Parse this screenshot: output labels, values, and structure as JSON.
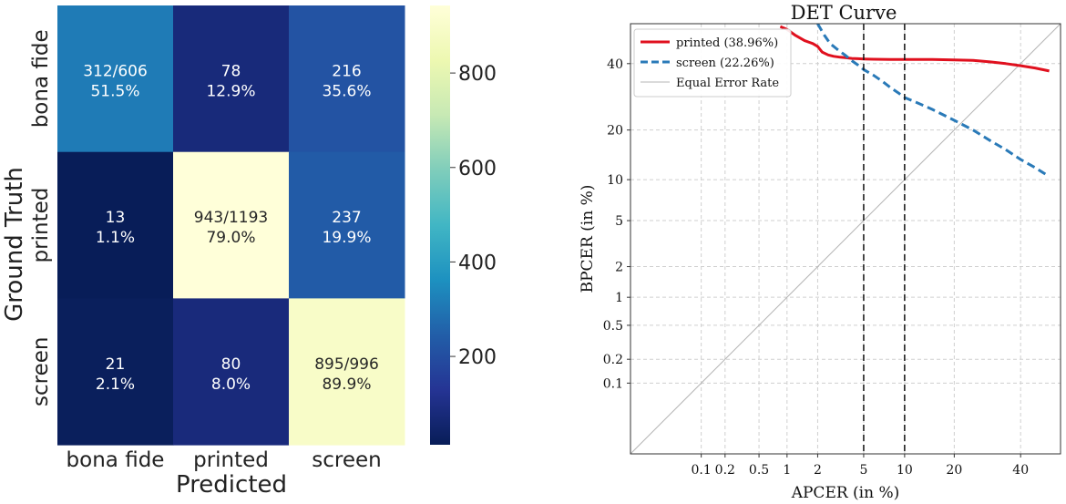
{
  "chart_data": [
    {
      "type": "heatmap",
      "ylabel": "Ground Truth",
      "xlabel": "Predicted",
      "row_labels": [
        "bona fide",
        "printed",
        "screen"
      ],
      "col_labels": [
        "bona fide",
        "printed",
        "screen"
      ],
      "values": [
        [
          312,
          78,
          216
        ],
        [
          13,
          943,
          237
        ],
        [
          21,
          80,
          895
        ]
      ],
      "cell_text": [
        [
          "312/606",
          "78",
          "216"
        ],
        [
          "13",
          "943/1193",
          "237"
        ],
        [
          "21",
          "80",
          "895/996"
        ]
      ],
      "cell_pct": [
        [
          "51.5%",
          "12.9%",
          "35.6%"
        ],
        [
          "1.1%",
          "79.0%",
          "19.9%"
        ],
        [
          "2.1%",
          "8.0%",
          "89.9%"
        ]
      ],
      "colorbar": {
        "ticks": [
          "200",
          "400",
          "600",
          "800"
        ],
        "tick_values": [
          200,
          400,
          600,
          800
        ],
        "range": [
          13,
          943
        ]
      },
      "colormap": [
        "#081d58",
        "#253494",
        "#225ea8",
        "#1d91c0",
        "#41b6c4",
        "#7fcdbb",
        "#c7e9b4",
        "#edf8b1",
        "#ffffd9"
      ]
    },
    {
      "type": "line",
      "title": "DET Curve",
      "xlabel": "APCER (in %)",
      "ylabel": "BPCER (in %)",
      "xscale": "probit",
      "yscale": "probit",
      "xlim": [
        0.01,
        54
      ],
      "ylim": [
        0.01,
        54
      ],
      "xticks": [
        0.1,
        0.2,
        0.5,
        1,
        2,
        5,
        10,
        20,
        40
      ],
      "xtick_labels": [
        "0.1",
        "0.2",
        "0.5",
        "1",
        "2",
        "5",
        "10",
        "20",
        "40"
      ],
      "yticks": [
        0.1,
        0.2,
        0.5,
        1,
        2,
        5,
        10,
        20,
        40
      ],
      "ytick_labels": [
        "0.1",
        "0.2",
        "0.5",
        "1",
        "2",
        "5",
        "10",
        "20",
        "40"
      ],
      "grid": true,
      "legend_position": "top-left",
      "vlines": [
        5,
        10
      ],
      "series": [
        {
          "name": "printed (38.96%)",
          "color": "#e0101e",
          "style": "solid",
          "x": [
            0.85,
            1.0,
            1.2,
            1.5,
            1.8,
            2.0,
            2.2,
            2.5,
            2.8,
            3.2,
            3.6,
            4.0,
            4.5,
            5.0,
            6,
            8,
            10,
            15,
            20,
            25,
            30,
            35,
            40,
            45,
            50
          ],
          "y": [
            53,
            52,
            50,
            48,
            47,
            46,
            44,
            43,
            42.5,
            42.2,
            42.0,
            41.8,
            41.7,
            41.6,
            41.5,
            41.4,
            41.4,
            41.4,
            41.3,
            41.1,
            40.6,
            40.0,
            39.3,
            38.5,
            37.5
          ]
        },
        {
          "name": "screen (22.26%)",
          "color": "#2a7ab8",
          "style": "dashed",
          "x": [
            2.0,
            2.3,
            2.6,
            3.0,
            3.5,
            4.0,
            4.5,
            5.0,
            6.0,
            7.0,
            8.0,
            9.0,
            10.0,
            12.0,
            15.0,
            20.0,
            25.0,
            30.0,
            35.0,
            40.0,
            45.0,
            50.0
          ],
          "y": [
            54,
            50,
            47,
            45,
            43,
            41,
            39.5,
            38,
            36,
            34,
            32,
            30.5,
            29,
            27.5,
            25.5,
            22.5,
            20,
            17.5,
            15.5,
            13.5,
            12,
            10.5
          ]
        },
        {
          "name": "Equal Error Rate",
          "color": "#b5b5b5",
          "style": "solid",
          "x": [
            0.01,
            54
          ],
          "y": [
            0.01,
            54
          ]
        }
      ]
    }
  ]
}
